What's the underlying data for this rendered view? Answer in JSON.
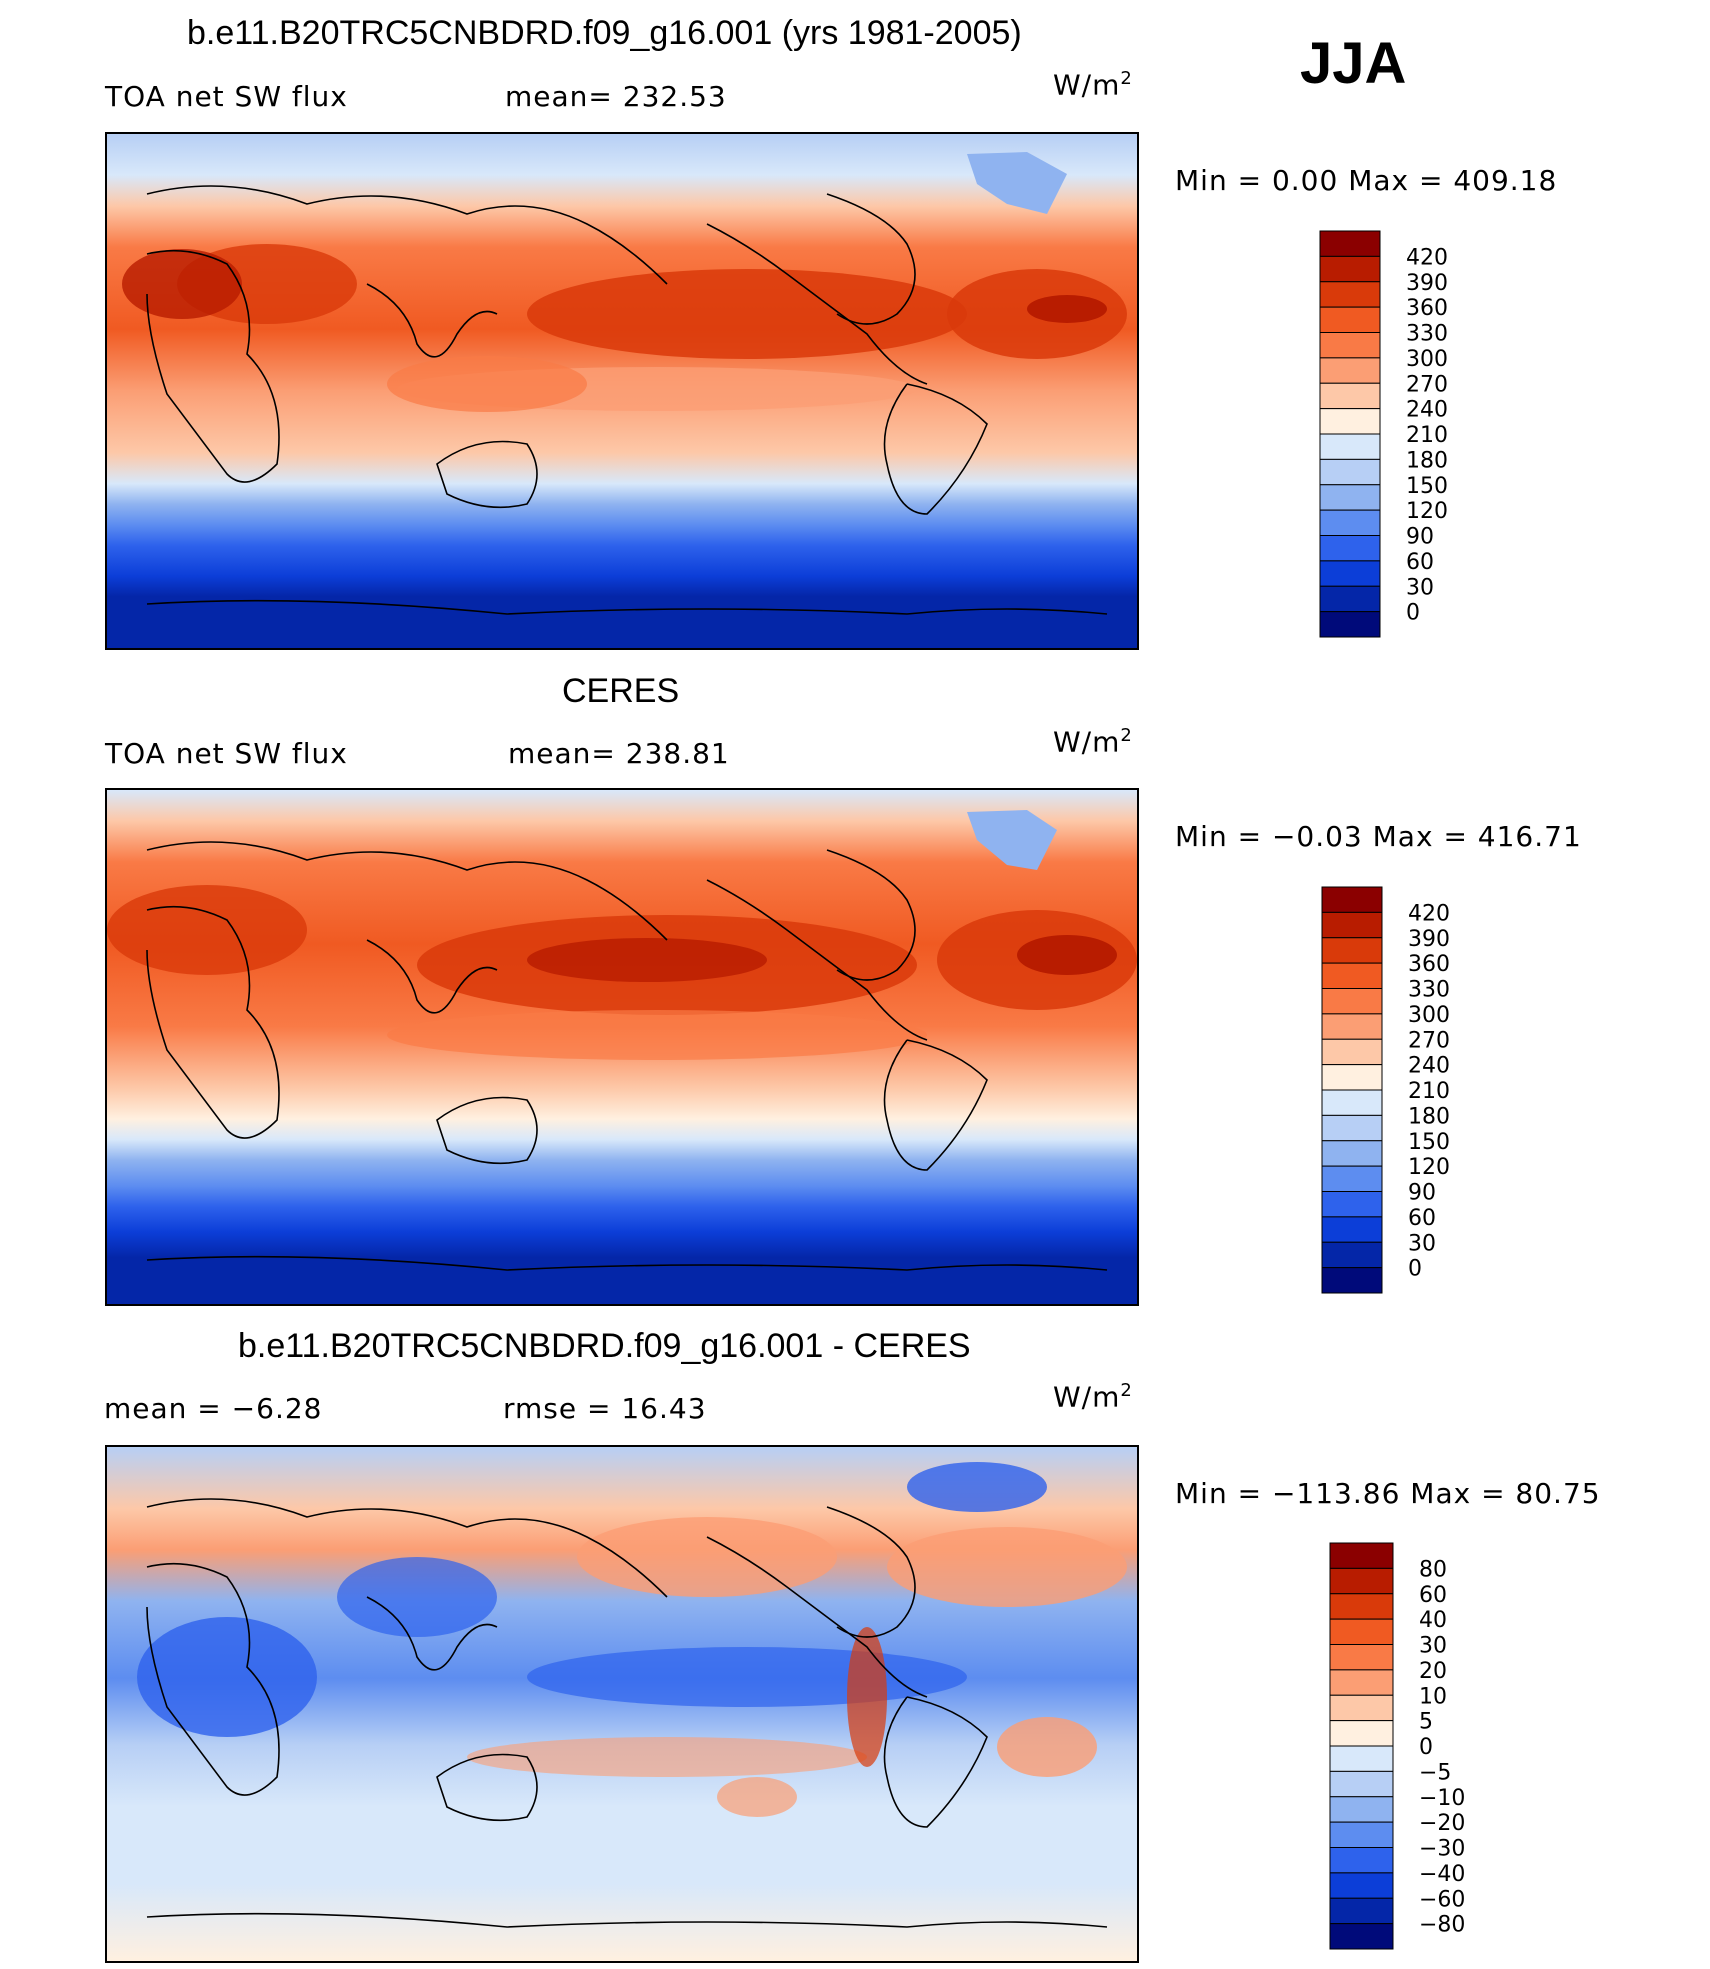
{
  "season": "JJA",
  "panels": [
    {
      "id": "model",
      "title": "b.e11.B20TRC5CNBDRD.f09_g16.001 (yrs 1981-2005)",
      "left_label": "TOA net SW flux",
      "center_label": "mean= 232.53",
      "units": "W/m",
      "units_sup": "2",
      "minmax": "Min =    0.00 Max = 409.18",
      "colorbar_labels": [
        "420",
        "390",
        "360",
        "330",
        "300",
        "270",
        "240",
        "210",
        "180",
        "150",
        "120",
        "90",
        "60",
        "30",
        "0"
      ],
      "colorbar_colors": [
        "#8b0000",
        "#b81c00",
        "#d93a0a",
        "#f05a22",
        "#f97a46",
        "#fb9e74",
        "#fdc8a8",
        "#fff0e0",
        "#d8e8fa",
        "#b7cff5",
        "#8fb3f0",
        "#5d8df0",
        "#2e62ec",
        "#0c3ed8",
        "#0426a8",
        "#000a7a"
      ]
    },
    {
      "id": "obs",
      "title": "CERES",
      "left_label": "TOA net SW flux",
      "center_label": "mean= 238.81",
      "units": "W/m",
      "units_sup": "2",
      "minmax": "Min =  −0.03 Max = 416.71",
      "colorbar_labels": [
        "420",
        "390",
        "360",
        "330",
        "300",
        "270",
        "240",
        "210",
        "180",
        "150",
        "120",
        "90",
        "60",
        "30",
        "0"
      ],
      "colorbar_colors": [
        "#8b0000",
        "#b81c00",
        "#d93a0a",
        "#f05a22",
        "#f97a46",
        "#fb9e74",
        "#fdc8a8",
        "#fff0e0",
        "#d8e8fa",
        "#b7cff5",
        "#8fb3f0",
        "#5d8df0",
        "#2e62ec",
        "#0c3ed8",
        "#0426a8",
        "#000a7a"
      ]
    },
    {
      "id": "diff",
      "title": "b.e11.B20TRC5CNBDRD.f09_g16.001 - CERES",
      "left_label": "mean =   −6.28",
      "center_label": "rmse =   16.43",
      "units": "W/m",
      "units_sup": "2",
      "minmax": "Min = −113.86 Max =   80.75",
      "colorbar_labels": [
        "80",
        "60",
        "40",
        "30",
        "20",
        "10",
        "5",
        "0",
        "−5",
        "−10",
        "−20",
        "−30",
        "−40",
        "−60",
        "−80"
      ],
      "colorbar_colors": [
        "#8b0000",
        "#b81c00",
        "#d93a0a",
        "#f05a22",
        "#f97a46",
        "#fb9e74",
        "#fdc8a8",
        "#fff0e0",
        "#d8e8fa",
        "#b7cff5",
        "#8fb3f0",
        "#5d8df0",
        "#2e62ec",
        "#0c3ed8",
        "#0426a8",
        "#000a7a"
      ]
    }
  ]
}
